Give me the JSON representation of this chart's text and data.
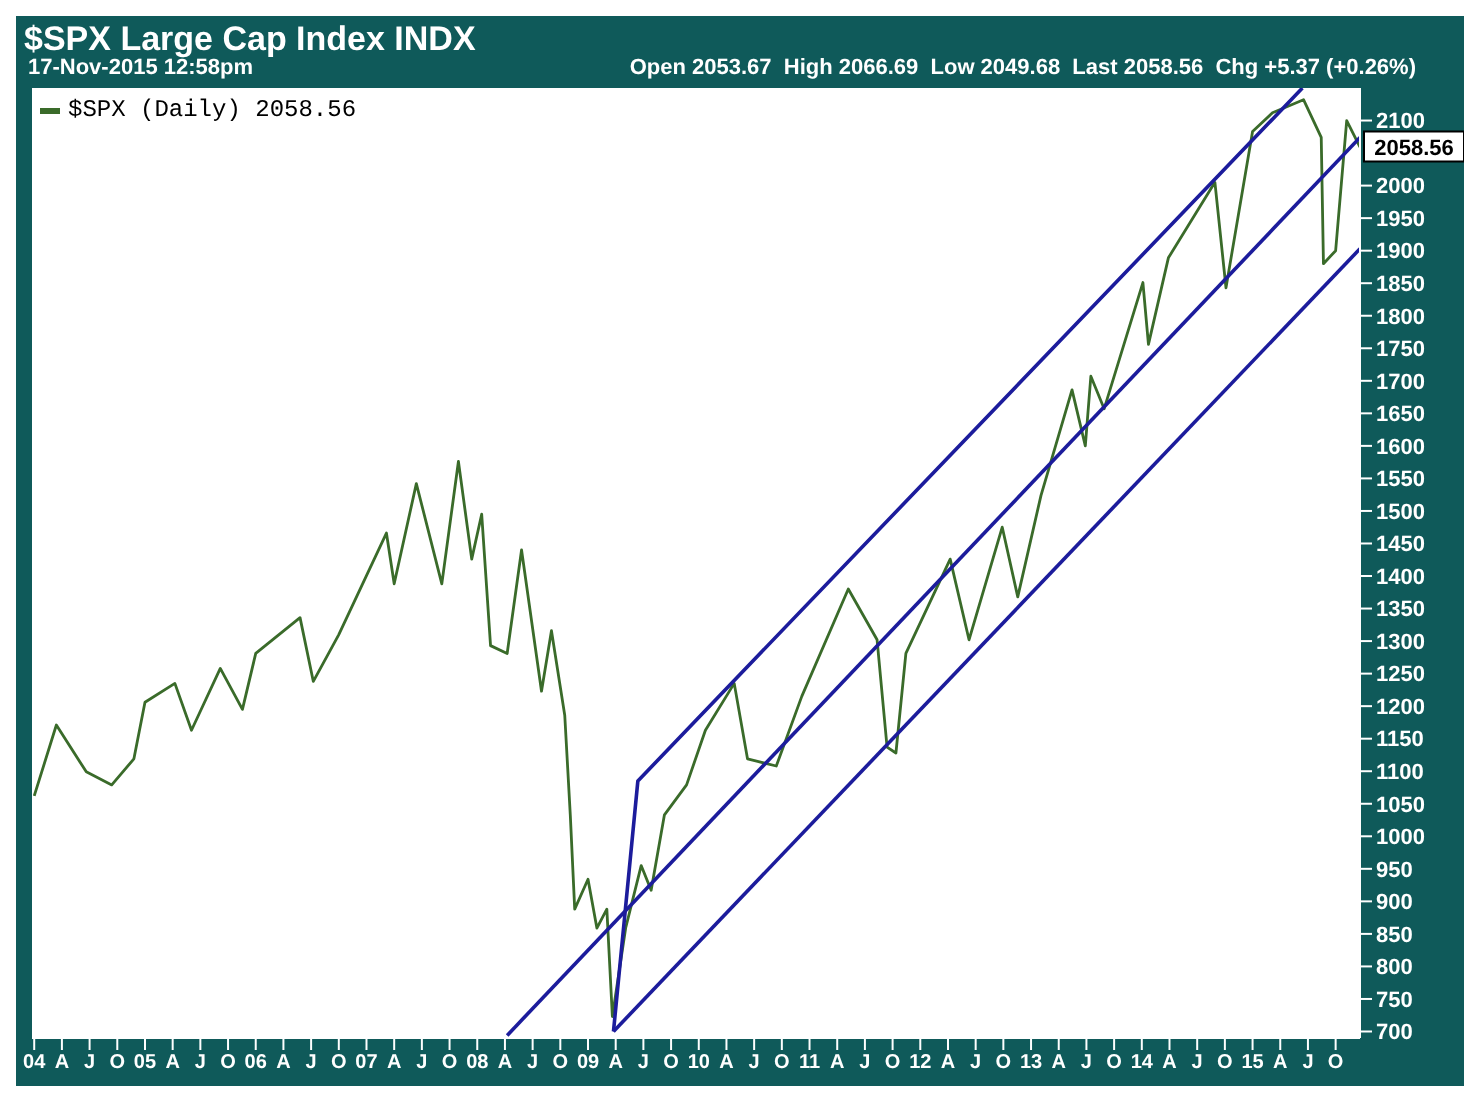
{
  "chart_data": {
    "type": "line",
    "title": "$SPX Large Cap Index INDX",
    "subtitle": "17-Nov-2015 12:58pm",
    "annotations": [
      "Open 2053.67  High 2066.69  Low 2049.68  Last 2058.56  Chg +5.37 (+0.26%)",
      {
        "text": "2058.56",
        "x": 2015.97,
        "y": 2058.56
      }
    ],
    "series": [
      {
        "name": "$SPX (Daily) 2058.56",
        "color": "#3a6b2a",
        "x": [
          2004.0,
          2004.2,
          2004.47,
          2004.7,
          2004.9,
          2005.0,
          2005.27,
          2005.42,
          2005.68,
          2005.88,
          2006.0,
          2006.4,
          2006.52,
          2006.75,
          2007.18,
          2007.25,
          2007.45,
          2007.68,
          2007.83,
          2007.95,
          2008.04,
          2008.12,
          2008.27,
          2008.4,
          2008.58,
          2008.67,
          2008.79,
          2008.84,
          2008.88,
          2009.0,
          2009.08,
          2009.17,
          2009.22,
          2009.34,
          2009.48,
          2009.57,
          2009.69,
          2009.89,
          2010.06,
          2010.32,
          2010.44,
          2010.7,
          2010.93,
          2011.35,
          2011.61,
          2011.7,
          2011.78,
          2011.87,
          2012.27,
          2012.44,
          2012.74,
          2012.88,
          2013.09,
          2013.37,
          2013.49,
          2013.54,
          2013.66,
          2014.01,
          2014.06,
          2014.24,
          2014.66,
          2014.76,
          2015.0,
          2015.18,
          2015.46,
          2015.62,
          2015.64,
          2015.75,
          2015.85,
          2015.97
        ],
        "values": [
          1062,
          1171,
          1099,
          1079,
          1119,
          1206,
          1235,
          1163,
          1258,
          1195,
          1281,
          1336,
          1238,
          1310,
          1466,
          1388,
          1542,
          1388,
          1576,
          1426,
          1495,
          1293,
          1281,
          1440,
          1223,
          1316,
          1186,
          1033,
          888,
          934,
          859,
          888,
          723,
          859,
          955,
          917,
          1033,
          1079,
          1163,
          1235,
          1119,
          1108,
          1215,
          1380,
          1302,
          1137,
          1128,
          1281,
          1426,
          1302,
          1475,
          1368,
          1524,
          1686,
          1600,
          1707,
          1657,
          1851,
          1756,
          1889,
          2005,
          1843,
          2083,
          2112,
          2132,
          2074,
          1880,
          1900,
          2100,
          2059
        ]
      },
      {
        "color": "#1c1c9c",
        "x": [
          2009.23,
          2009.45,
          2015.45
        ],
        "values": [
          700,
          1085,
          2150
        ]
      },
      {
        "color": "#1c1c9c",
        "x": [
          2008.27,
          2015.97
        ],
        "values": [
          694,
          2074
        ]
      },
      {
        "color": "#1c1c9c",
        "x": [
          2009.23,
          2015.97
        ],
        "values": [
          700,
          1903
        ]
      }
    ],
    "xlim": [
      2003.98,
      2015.97
    ],
    "ylim": [
      690,
      2150
    ],
    "xticks": [
      {
        "value": 2004,
        "label": "04"
      },
      {
        "value": 2004.25,
        "label": "A"
      },
      {
        "value": 2004.5,
        "label": "J"
      },
      {
        "value": 2004.75,
        "label": "O"
      },
      {
        "value": 2005,
        "label": "05"
      },
      {
        "value": 2005.25,
        "label": "A"
      },
      {
        "value": 2005.5,
        "label": "J"
      },
      {
        "value": 2005.75,
        "label": "O"
      },
      {
        "value": 2006,
        "label": "06"
      },
      {
        "value": 2006.25,
        "label": "A"
      },
      {
        "value": 2006.5,
        "label": "J"
      },
      {
        "value": 2006.75,
        "label": "O"
      },
      {
        "value": 2007,
        "label": "07"
      },
      {
        "value": 2007.25,
        "label": "A"
      },
      {
        "value": 2007.5,
        "label": "J"
      },
      {
        "value": 2007.75,
        "label": "O"
      },
      {
        "value": 2008,
        "label": "08"
      },
      {
        "value": 2008.25,
        "label": "A"
      },
      {
        "value": 2008.5,
        "label": "J"
      },
      {
        "value": 2008.75,
        "label": "O"
      },
      {
        "value": 2009,
        "label": "09"
      },
      {
        "value": 2009.25,
        "label": "A"
      },
      {
        "value": 2009.5,
        "label": "J"
      },
      {
        "value": 2009.75,
        "label": "O"
      },
      {
        "value": 2010,
        "label": "10"
      },
      {
        "value": 2010.25,
        "label": "A"
      },
      {
        "value": 2010.5,
        "label": "J"
      },
      {
        "value": 2010.75,
        "label": "O"
      },
      {
        "value": 2011,
        "label": "11"
      },
      {
        "value": 2011.25,
        "label": "A"
      },
      {
        "value": 2011.5,
        "label": "J"
      },
      {
        "value": 2011.75,
        "label": "O"
      },
      {
        "value": 2012,
        "label": "12"
      },
      {
        "value": 2012.25,
        "label": "A"
      },
      {
        "value": 2012.5,
        "label": "J"
      },
      {
        "value": 2012.75,
        "label": "O"
      },
      {
        "value": 2013,
        "label": "13"
      },
      {
        "value": 2013.25,
        "label": "A"
      },
      {
        "value": 2013.5,
        "label": "J"
      },
      {
        "value": 2013.75,
        "label": "O"
      },
      {
        "value": 2014,
        "label": "14"
      },
      {
        "value": 2014.25,
        "label": "A"
      },
      {
        "value": 2014.5,
        "label": "J"
      },
      {
        "value": 2014.75,
        "label": "O"
      },
      {
        "value": 2015,
        "label": "15"
      },
      {
        "value": 2015.25,
        "label": "A"
      },
      {
        "value": 2015.5,
        "label": "J"
      },
      {
        "value": 2015.75,
        "label": "O"
      }
    ],
    "yticks": [
      700,
      750,
      800,
      850,
      900,
      950,
      1000,
      1050,
      1100,
      1150,
      1200,
      1250,
      1300,
      1350,
      1400,
      1450,
      1500,
      1550,
      1600,
      1650,
      1700,
      1750,
      1800,
      1850,
      1900,
      1950,
      2000,
      2100
    ],
    "legend": "top left"
  }
}
